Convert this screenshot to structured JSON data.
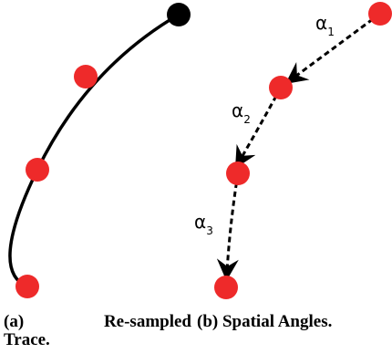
{
  "colors": {
    "sample_point": "#ee2a2a",
    "start_point": "#000000",
    "stroke": "#000000",
    "background": "#ffffff"
  },
  "angles": [
    {
      "symbol": "α",
      "subscript": "1"
    },
    {
      "symbol": "α",
      "subscript": "2"
    },
    {
      "symbol": "α",
      "subscript": "3"
    }
  ],
  "captions": {
    "a": {
      "tag": "(a)",
      "word1": "Re-sampled",
      "word2": "Trace."
    },
    "b": {
      "text": "(b) Spatial Angles."
    }
  }
}
